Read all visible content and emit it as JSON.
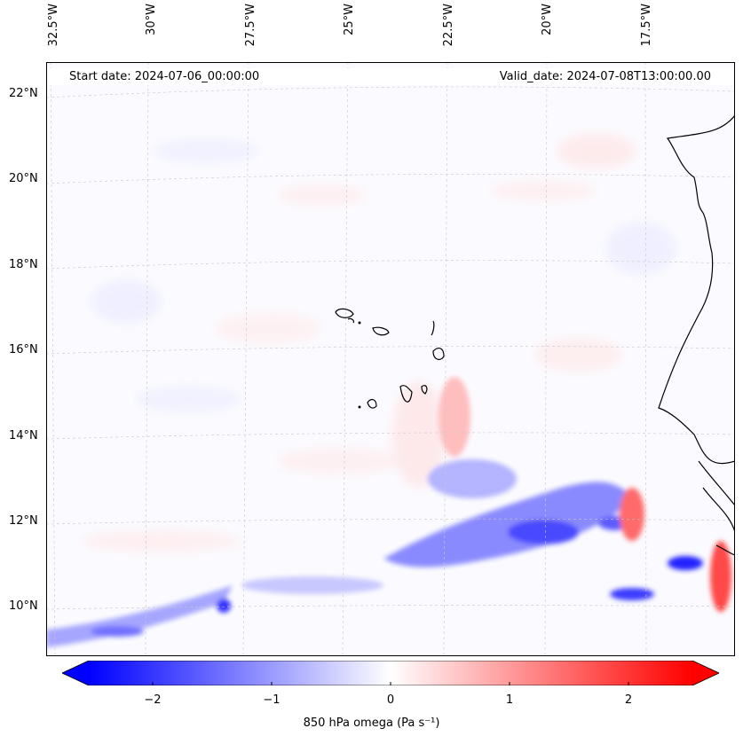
{
  "header": {
    "start_date": "Start date: 2024-07-06_00:00:00",
    "valid_date": "Valid_date: 2024-07-08T13:00:00.00"
  },
  "longitude_labels": [
    "32.5°W",
    "30°W",
    "27.5°W",
    "25°W",
    "22.5°W",
    "20°W",
    "17.5°W"
  ],
  "latitude_labels": [
    "22°N",
    "20°N",
    "18°N",
    "16°N",
    "14°N",
    "12°N",
    "10°N"
  ],
  "colorbar": {
    "min": -2.5,
    "max": 2.5,
    "ticks": [
      "−2",
      "−1",
      "0",
      "1",
      "2"
    ],
    "label": "850 hPa omega (Pa s⁻¹)",
    "low_color": "#0000ff",
    "mid_color": "#ffffff",
    "high_color": "#ff0000"
  }
}
